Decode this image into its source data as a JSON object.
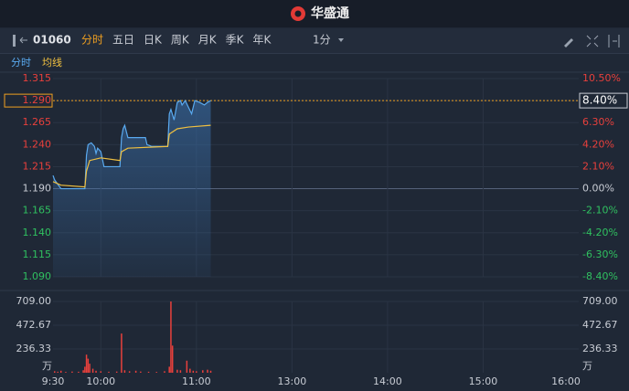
{
  "header": {
    "logo": "华盛通"
  },
  "toolbar": {
    "code": "01060",
    "tabs": [
      "分时",
      "五日",
      "日K",
      "周K",
      "月K",
      "季K",
      "年K"
    ],
    "interval": "1分"
  },
  "chart_data": [
    {
      "type": "line",
      "series": [
        {
          "name": "分时",
          "color": "#5aaaf0",
          "x": [
            0,
            1,
            3,
            5,
            10,
            20,
            21,
            22,
            24,
            26,
            27,
            28,
            30,
            32,
            36,
            42,
            43,
            44,
            45,
            47,
            55,
            58,
            59,
            62,
            70,
            72,
            73,
            74,
            76,
            78,
            80,
            81,
            83,
            87,
            89,
            92,
            95,
            97,
            99
          ],
          "values": [
            1.205,
            1.2,
            1.195,
            1.19,
            1.19,
            1.19,
            1.228,
            1.24,
            1.242,
            1.238,
            1.23,
            1.236,
            1.232,
            1.215,
            1.215,
            1.215,
            1.248,
            1.258,
            1.262,
            1.248,
            1.248,
            1.248,
            1.24,
            1.238,
            1.238,
            1.238,
            1.275,
            1.28,
            1.268,
            1.288,
            1.29,
            1.285,
            1.29,
            1.275,
            1.29,
            1.288,
            1.285,
            1.288,
            1.29
          ]
        },
        {
          "name": "均线",
          "color": "#f0c040",
          "x": [
            0,
            5,
            20,
            21,
            23,
            30,
            42,
            43,
            47,
            72,
            73,
            78,
            85,
            99
          ],
          "values": [
            1.198,
            1.194,
            1.192,
            1.21,
            1.222,
            1.225,
            1.222,
            1.232,
            1.236,
            1.238,
            1.252,
            1.258,
            1.26,
            1.262
          ]
        }
      ],
      "xlim": [
        0,
        330
      ],
      "ylim": [
        1.09,
        1.315
      ],
      "yticks": [
        1.315,
        {
          "value": 1.29,
          "label": "1.290"
        },
        1.265,
        {
          "value": 1.24,
          "label": "1.240"
        },
        1.215,
        {
          "value": 1.19,
          "label": "1.190"
        },
        1.165,
        {
          "value": 1.14,
          "label": "1.140"
        },
        1.115,
        {
          "value": 1.09,
          "label": "1.090"
        }
      ],
      "y2lim": [
        -8.4,
        10.5
      ],
      "y2ticks": [
        {
          "value": 10.5,
          "label": "10.50%"
        },
        {
          "value": 8.4,
          "label": "8.40%"
        },
        {
          "value": 6.3,
          "label": "6.30%"
        },
        {
          "value": 4.2,
          "label": "4.20%"
        },
        {
          "value": 2.1,
          "label": "2.10%"
        },
        {
          "value": 0,
          "label": "0.00%"
        },
        {
          "value": -2.1,
          "label": "-2.10%"
        },
        {
          "value": -4.2,
          "label": "-4.20%"
        },
        {
          "value": -6.3,
          "label": "-6.30%"
        },
        {
          "value": -8.4,
          "label": "-8.40%"
        }
      ],
      "grid": true
    },
    {
      "type": "bar",
      "color": "#e8403c",
      "x": [
        1,
        3,
        5,
        8,
        12,
        16,
        19,
        20,
        21,
        22,
        23,
        25,
        27,
        30,
        35,
        40,
        43,
        45,
        48,
        52,
        55,
        60,
        65,
        70,
        73,
        74,
        75,
        78,
        80,
        84,
        86,
        88,
        90,
        94,
        97,
        99
      ],
      "values": [
        15,
        10,
        20,
        8,
        12,
        10,
        25,
        60,
        180,
        140,
        90,
        40,
        20,
        15,
        10,
        12,
        390,
        25,
        15,
        20,
        12,
        10,
        8,
        15,
        60,
        709,
        270,
        30,
        25,
        120,
        40,
        20,
        15,
        25,
        30,
        20
      ],
      "y_unit": "万",
      "xlim": [
        0,
        330
      ],
      "xticks": [
        {
          "value": 0,
          "label": "9:30"
        },
        {
          "value": 30,
          "label": "10:00"
        },
        {
          "value": 90,
          "label": "11:00"
        },
        {
          "value": 150,
          "label": "13:00"
        },
        {
          "value": 210,
          "label": "14:00"
        },
        {
          "value": 270,
          "label": "15:00"
        },
        {
          "value": 330,
          "label": "16:00"
        }
      ],
      "ylim": [
        0,
        709
      ],
      "yticks": [
        {
          "value": 709,
          "label": "709.00"
        },
        {
          "value": 472.67,
          "label": "472.67"
        },
        {
          "value": 236.33,
          "label": "236.33"
        }
      ],
      "grid": true
    }
  ]
}
